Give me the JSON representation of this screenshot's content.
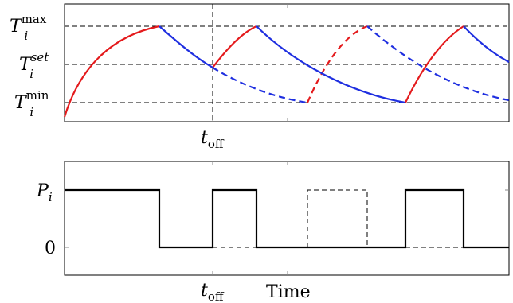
{
  "diagram": {
    "top_panel": {
      "labels": {
        "tmax": {
          "base": "T",
          "sub": "i",
          "sup": "max"
        },
        "tset": {
          "base": "T",
          "sub": "i",
          "sup": "set"
        },
        "tmin": {
          "base": "T",
          "sub": "i",
          "sup": "min"
        }
      },
      "toff_label": {
        "base": "t",
        "sub": "off"
      }
    },
    "bottom_panel": {
      "labels": {
        "pi": {
          "base": "P",
          "sub": "i"
        },
        "zero": "0"
      },
      "toff_label": {
        "base": "t",
        "sub": "off"
      },
      "xlabel": "Time"
    },
    "colors": {
      "heating": "#e41a1c",
      "cooling": "#1f2fe0",
      "frame": "#000000",
      "grid": "#000000"
    }
  }
}
